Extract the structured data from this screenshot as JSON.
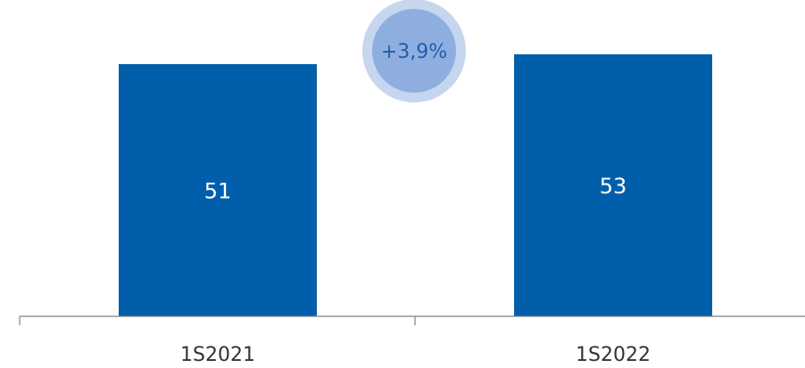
{
  "chart_data": {
    "type": "bar",
    "categories": [
      "1S2021",
      "1S2022"
    ],
    "values": [
      51,
      53
    ],
    "value_labels": [
      "51",
      "53"
    ],
    "growth_label": "+3,9%",
    "title": "",
    "xlabel": "",
    "ylabel": "",
    "grid": false,
    "colors": {
      "bar": "#005eab",
      "axis": "#7f7f7f",
      "bubble_outer": "#c5d6ee",
      "bubble_inner": "#8eaee0",
      "growth_text": "#1f5fa8"
    }
  }
}
